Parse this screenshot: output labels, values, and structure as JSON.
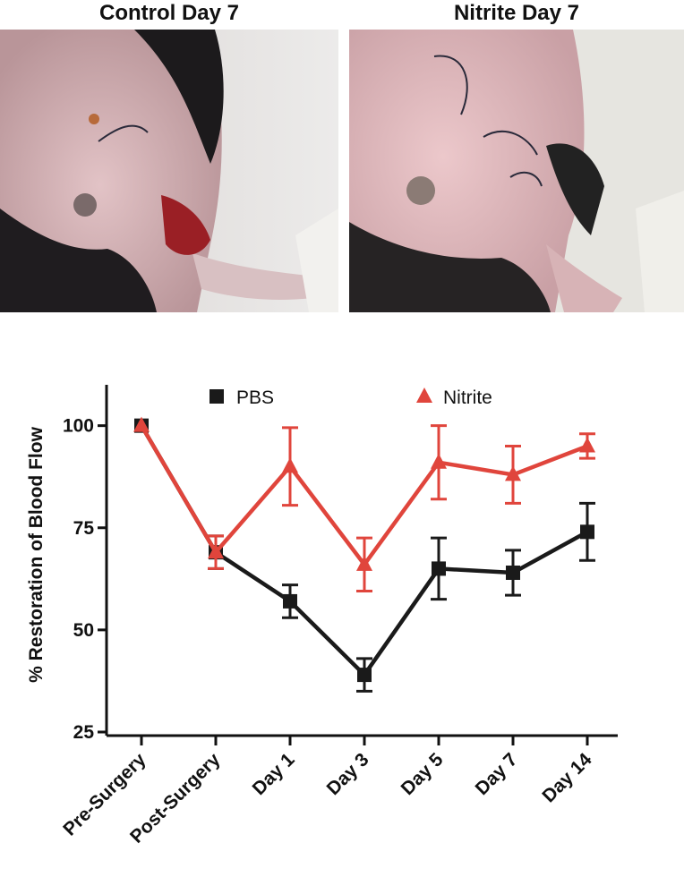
{
  "photos": [
    {
      "title": "Control Day 7"
    },
    {
      "title": "Nitrite Day 7"
    }
  ],
  "colors": {
    "pbs": "#1a1a1a",
    "nitrite": "#e0453c"
  },
  "chart_data": {
    "type": "line",
    "categories": [
      "Pre-Surgery",
      "Post-Surgery",
      "Day 1",
      "Day 3",
      "Day 5",
      "Day 7",
      "Day 14"
    ],
    "ylabel": "% Restoration of Blood Flow",
    "ylim": [
      25,
      110
    ],
    "yticks": [
      25,
      50,
      75,
      100
    ],
    "legend_position": "top",
    "series": [
      {
        "name": "PBS",
        "marker": "square",
        "color": "#1a1a1a",
        "values": [
          100,
          69,
          57,
          39,
          65,
          64,
          74
        ],
        "errors": [
          0,
          4,
          4,
          4,
          7.5,
          5.5,
          7
        ]
      },
      {
        "name": "Nitrite",
        "marker": "triangle",
        "color": "#e0453c",
        "values": [
          100,
          69,
          90,
          66,
          91,
          88,
          95
        ],
        "errors": [
          0,
          4,
          9.5,
          6.5,
          9,
          7,
          3
        ]
      }
    ]
  }
}
